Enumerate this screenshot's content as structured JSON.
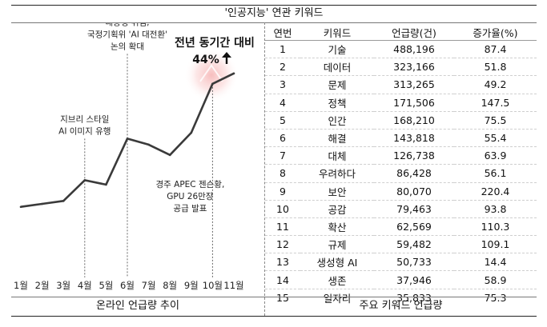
{
  "title": "'인공지능' 연관 키워드",
  "left_caption": "온라인 언급량 추이",
  "right_caption": "주요 키워드 언급량",
  "chart_data": {
    "type": "line",
    "categories": [
      "1월",
      "2월",
      "3월",
      "4월",
      "5월",
      "6월",
      "7월",
      "8월",
      "9월",
      "10월",
      "11월"
    ],
    "values": [
      12,
      14,
      16,
      30,
      27,
      58,
      54,
      47,
      62,
      95,
      102
    ],
    "ylim": [
      0,
      110
    ],
    "grid": false,
    "highlight": {
      "line1": "전년 동기간 대비",
      "line2": "44%",
      "arrow": "up-arrow",
      "glow_color": "#f4a0a0"
    },
    "annotations": [
      {
        "month": "4월",
        "lines": [
          "지브리 스타일",
          "AI 이미지 유행"
        ]
      },
      {
        "month": "6월",
        "lines": [
          "대통령 취임,",
          "국정기획위 'AI 대전환'",
          "논의 확대"
        ]
      },
      {
        "month": "10월",
        "lines": [
          "경주 APEC 젠슨황,",
          "GPU 26만장",
          "공급 발표"
        ]
      }
    ],
    "line_color": "#3a3a3a"
  },
  "table": {
    "headers": [
      "연번",
      "키워드",
      "언급량(건)",
      "증가율(%)"
    ],
    "rows": [
      [
        "1",
        "기술",
        "488,196",
        "87.4"
      ],
      [
        "2",
        "데이터",
        "323,166",
        "51.8"
      ],
      [
        "3",
        "문제",
        "313,265",
        "49.2"
      ],
      [
        "4",
        "정책",
        "171,506",
        "147.5"
      ],
      [
        "5",
        "인간",
        "168,210",
        "75.5"
      ],
      [
        "6",
        "해결",
        "143,818",
        "55.4"
      ],
      [
        "7",
        "대체",
        "126,738",
        "63.9"
      ],
      [
        "8",
        "우려하다",
        "86,428",
        "56.1"
      ],
      [
        "9",
        "보안",
        "80,070",
        "220.4"
      ],
      [
        "10",
        "공감",
        "79,463",
        "93.8"
      ],
      [
        "11",
        "확산",
        "62,569",
        "110.3"
      ],
      [
        "12",
        "규제",
        "59,482",
        "109.1"
      ],
      [
        "13",
        "생성형 AI",
        "50,733",
        "14.4"
      ],
      [
        "14",
        "생존",
        "37,946",
        "58.9"
      ],
      [
        "15",
        "일자리",
        "35,833",
        "75.3"
      ]
    ]
  }
}
